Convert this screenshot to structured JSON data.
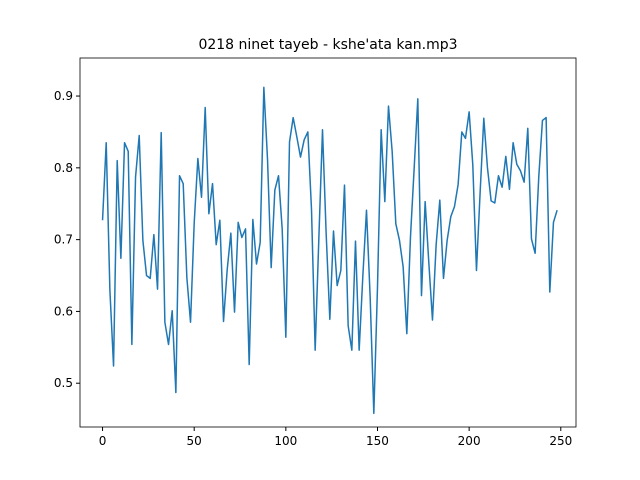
{
  "chart_data": {
    "type": "line",
    "title": "0218 ninet tayeb - kshe'ata kan.mp3",
    "x": [
      0,
      2,
      4,
      6,
      8,
      10,
      12,
      14,
      16,
      18,
      20,
      22,
      24,
      26,
      28,
      30,
      32,
      34,
      36,
      38,
      40,
      42,
      44,
      46,
      48,
      50,
      52,
      54,
      56,
      58,
      60,
      62,
      64,
      66,
      68,
      70,
      72,
      74,
      76,
      78,
      80,
      82,
      84,
      86,
      88,
      90,
      92,
      94,
      96,
      98,
      100,
      102,
      104,
      106,
      108,
      110,
      112,
      114,
      116,
      118,
      120,
      122,
      124,
      126,
      128,
      130,
      132,
      134,
      136,
      138,
      140,
      142,
      144,
      146,
      148,
      150,
      152,
      154,
      156,
      158,
      160,
      162,
      164,
      166,
      168,
      170,
      172,
      174,
      176,
      178,
      180,
      182,
      184,
      186,
      188,
      190,
      192,
      194,
      196,
      198,
      200,
      202,
      204,
      206,
      208,
      210,
      212,
      214,
      216,
      218,
      220,
      222,
      224,
      226,
      228,
      230,
      232,
      234,
      236,
      238,
      240,
      242,
      244,
      246,
      248
    ],
    "series": [
      {
        "color": "#1f77b4",
        "values": [
          0.727,
          0.835,
          0.63,
          0.524,
          0.81,
          0.674,
          0.835,
          0.823,
          0.554,
          0.787,
          0.845,
          0.699,
          0.65,
          0.646,
          0.707,
          0.631,
          0.849,
          0.585,
          0.554,
          0.601,
          0.487,
          0.789,
          0.778,
          0.647,
          0.585,
          0.723,
          0.813,
          0.759,
          0.884,
          0.736,
          0.778,
          0.693,
          0.727,
          0.586,
          0.658,
          0.709,
          0.599,
          0.724,
          0.703,
          0.715,
          0.526,
          0.728,
          0.666,
          0.696,
          0.912,
          0.812,
          0.661,
          0.769,
          0.789,
          0.715,
          0.564,
          0.836,
          0.87,
          0.843,
          0.815,
          0.839,
          0.85,
          0.742,
          0.546,
          0.701,
          0.853,
          0.708,
          0.589,
          0.712,
          0.636,
          0.657,
          0.776,
          0.58,
          0.546,
          0.698,
          0.546,
          0.649,
          0.741,
          0.62,
          0.458,
          0.634,
          0.853,
          0.753,
          0.886,
          0.823,
          0.722,
          0.699,
          0.662,
          0.569,
          0.704,
          0.799,
          0.896,
          0.622,
          0.753,
          0.668,
          0.588,
          0.693,
          0.755,
          0.646,
          0.699,
          0.732,
          0.746,
          0.777,
          0.85,
          0.841,
          0.878,
          0.804,
          0.657,
          0.766,
          0.869,
          0.8,
          0.754,
          0.751,
          0.789,
          0.773,
          0.816,
          0.77,
          0.835,
          0.805,
          0.796,
          0.78,
          0.855,
          0.701,
          0.681,
          0.788,
          0.866,
          0.87,
          0.627,
          0.724,
          0.741
        ]
      }
    ],
    "xlim": [
      -12.3,
      258.3
    ],
    "ylim": [
      0.439,
      0.953
    ],
    "xticks": [
      0,
      50,
      100,
      150,
      200,
      250
    ],
    "yticks": [
      0.5,
      0.6,
      0.7,
      0.8,
      0.9
    ]
  }
}
